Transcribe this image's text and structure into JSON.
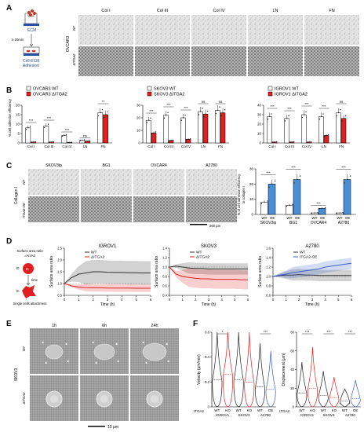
{
  "panels": {
    "A": {
      "label": "A",
      "schematic": {
        "ecm": "ECM",
        "time": "t=20min",
        "adhesion_line1": "Cell-ECM",
        "adhesion_line2": "Adhesion"
      },
      "columns": [
        "Col I",
        "Col III",
        "Col IV",
        "LN",
        "FN"
      ],
      "group": "OVCAR3",
      "rows": [
        "WT",
        "ΔITGA2"
      ]
    },
    "B": {
      "label": "B",
      "ylabel": "%  cell adhesion efficiency",
      "charts": [
        {
          "legend": [
            "OVCAR3 WT",
            "OVCAR3 ΔITGA2"
          ],
          "sig": [
            "***",
            "***",
            "***",
            "ns",
            "**"
          ]
        },
        {
          "legend": [
            "SKOV3 WT",
            "SKOV3 ΔITGA2"
          ],
          "sig": [
            "***",
            "***",
            "***",
            "ns",
            "ns"
          ]
        },
        {
          "legend": [
            "IGROV1 WT",
            "IGROV1 ΔITGA2"
          ],
          "sig": [
            "***",
            "***",
            "***",
            "***",
            "ns"
          ]
        }
      ]
    },
    "C": {
      "label": "C",
      "columns": [
        "SKOV3ip",
        "BG1",
        "OVCAR4",
        "A2780"
      ],
      "side": "Collagen  I",
      "rows": [
        "WT",
        "ITGA2-OE"
      ],
      "scale": "200 μm",
      "ylabel_line1": "% of cell adhesion efficiency",
      "ylabel_line2": "to collagen I",
      "sig": [
        "***",
        "***",
        "***",
        "***"
      ],
      "wt_oe": [
        "WT",
        "OE"
      ]
    },
    "D": {
      "label": "D",
      "schematic": {
        "title": "Surface area ratio",
        "formula": "=An/A0",
        "t0": "t0",
        "tn": "tn",
        "time": "time",
        "caption": "Single cells attachment"
      },
      "xlabel": "Time (h)",
      "ylabel": "Surface area ratio"
    },
    "E": {
      "label": "E",
      "columns": [
        "1h",
        "6h",
        "24h"
      ],
      "group": "SKOV3",
      "rows": [
        "WT",
        "ΔITGA2"
      ],
      "scale": "10 μm"
    },
    "F": {
      "label": "F",
      "row_label": "ITGA2",
      "lines": [
        "IGROV1",
        "SKOV3",
        "A2780"
      ],
      "plots": [
        {
          "ylabel": "Velocity (μm/min)",
          "sig": [
            "*",
            "***"
          ]
        },
        {
          "ylabel": "Displacement (μm)",
          "sig": [
            "***",
            "***",
            "***"
          ]
        }
      ]
    }
  },
  "chart_data": [
    {
      "type": "bar",
      "title": "",
      "categories": [
        "Col I",
        "Col III",
        "Col IV",
        "LN",
        "FN"
      ],
      "series": [
        {
          "name": "OVCAR3 WT",
          "values": [
            8,
            9,
            4,
            1.5,
            16
          ]
        },
        {
          "name": "OVCAR3 ΔITGA2",
          "values": [
            0.5,
            0.5,
            0.3,
            1,
            15
          ]
        }
      ],
      "ylim": [
        0,
        20
      ],
      "yticks": [
        0,
        5,
        10,
        15,
        20
      ],
      "colors": {
        "wt": "#ffffff",
        "ko": "#e02020"
      }
    },
    {
      "type": "bar",
      "title": "",
      "categories": [
        "Col I",
        "Col III",
        "Col IV",
        "LN",
        "FN"
      ],
      "series": [
        {
          "name": "SKOV3 WT",
          "values": [
            18,
            22,
            20,
            25,
            26
          ]
        },
        {
          "name": "SKOV3 ΔITGA2",
          "values": [
            8,
            2,
            3,
            23,
            24
          ]
        }
      ],
      "ylim": [
        0,
        30
      ],
      "yticks": [
        0,
        10,
        20,
        30
      ],
      "colors": {
        "wt": "#ffffff",
        "ko": "#e02020"
      }
    },
    {
      "type": "bar",
      "title": "",
      "categories": [
        "Col I",
        "Col III",
        "Col IV",
        "LN",
        "FN"
      ],
      "series": [
        {
          "name": "IGROV1 WT",
          "values": [
            28,
            26,
            30,
            28,
            32
          ]
        },
        {
          "name": "IGROV1 ΔITGA2",
          "values": [
            1,
            1,
            1,
            8,
            26
          ]
        }
      ],
      "ylim": [
        0,
        40
      ],
      "yticks": [
        0,
        10,
        20,
        30,
        40
      ],
      "colors": {
        "wt": "#ffffff",
        "ko": "#e02020"
      }
    },
    {
      "type": "bar",
      "title": "",
      "categories": [
        "SKOV3ip",
        "BG1",
        "OVCAR4",
        "A2780"
      ],
      "series": [
        {
          "name": "WT",
          "values": [
            8,
            6,
            1,
            1
          ]
        },
        {
          "name": "OE",
          "values": [
            20,
            23,
            4,
            23
          ]
        }
      ],
      "ylim": [
        0,
        30
      ],
      "yticks": [
        0,
        10,
        20,
        30
      ],
      "colors": {
        "wt": "#ffffff",
        "ko": "#4a8fd6"
      }
    },
    {
      "type": "line",
      "title": "IGROV1",
      "xlabel": "Time (h)",
      "ylabel": "Surface area ratio",
      "x": [
        0,
        0.5,
        1,
        1.5,
        2,
        2.5,
        3,
        3.5,
        4,
        4.5,
        5,
        5.5,
        6
      ],
      "series": [
        {
          "name": "WT",
          "values": [
            1.0,
            1.25,
            1.4,
            1.45,
            1.5,
            1.5,
            1.48,
            1.47,
            1.47,
            1.46,
            1.46,
            1.45,
            1.45
          ]
        },
        {
          "name": "ΔITGA2",
          "values": [
            1.0,
            0.9,
            0.85,
            0.83,
            0.82,
            0.82,
            0.81,
            0.81,
            0.81,
            0.81,
            0.8,
            0.8,
            0.8
          ]
        }
      ],
      "xlim": [
        0,
        6
      ],
      "ylim": [
        0.5,
        2.5
      ],
      "yticks": [
        0.5,
        1.0,
        1.5,
        2.0,
        2.5
      ]
    },
    {
      "type": "line",
      "title": "SKOV3",
      "xlabel": "Time (h)",
      "ylabel": "Surface area ratio",
      "x": [
        0,
        0.5,
        1,
        1.5,
        2,
        2.5,
        3,
        3.5,
        4,
        4.5,
        5,
        5.5,
        6
      ],
      "series": [
        {
          "name": "WT",
          "values": [
            1.0,
            1.02,
            1.0,
            0.98,
            0.97,
            0.97,
            0.96,
            0.96,
            0.96,
            0.96,
            0.96,
            0.96,
            0.96
          ]
        },
        {
          "name": "ΔITGA2",
          "values": [
            1.0,
            0.85,
            0.8,
            0.78,
            0.76,
            0.75,
            0.75,
            0.74,
            0.74,
            0.74,
            0.74,
            0.73,
            0.73
          ]
        }
      ],
      "xlim": [
        0,
        6
      ],
      "ylim": [
        0.4,
        1.4
      ],
      "yticks": [
        0.4,
        0.6,
        0.8,
        1.0,
        1.2,
        1.4
      ]
    },
    {
      "type": "line",
      "title": "A2780",
      "xlabel": "Time (h)",
      "ylabel": "Surface area ratio",
      "x": [
        0,
        0.5,
        1,
        1.5,
        2,
        2.5,
        3,
        3.5,
        4,
        4.5,
        5,
        5.5,
        6
      ],
      "series": [
        {
          "name": "WT",
          "values": [
            1.0,
            1.02,
            1.03,
            1.03,
            1.04,
            1.03,
            1.03,
            1.02,
            1.02,
            1.02,
            1.02,
            1.02,
            1.02
          ]
        },
        {
          "name": "ITGA2-OE",
          "values": [
            1.0,
            1.03,
            1.05,
            1.08,
            1.1,
            1.12,
            1.14,
            1.16,
            1.2,
            1.22,
            1.24,
            1.26,
            1.28
          ]
        }
      ],
      "xlim": [
        0,
        6
      ],
      "ylim": [
        0.6,
        1.6
      ],
      "yticks": [
        0.6,
        0.8,
        1.0,
        1.2,
        1.4,
        1.6
      ]
    },
    {
      "type": "violin",
      "ylabel": "Velocity (μm/min)",
      "categories": [
        "WT",
        "KO",
        "WT",
        "KO",
        "WT",
        "OE"
      ],
      "groups": [
        "IGROV1",
        "IGROV1",
        "SKOV3",
        "SKOV3",
        "A2780",
        "A2780"
      ],
      "medians": [
        0.22,
        0.26,
        0.22,
        0.2,
        0.16,
        0.14
      ],
      "ylim": [
        0,
        0.6
      ],
      "yticks": [
        0,
        0.2,
        0.4,
        0.6
      ]
    },
    {
      "type": "violin",
      "ylabel": "Displacement (μm)",
      "categories": [
        "WT",
        "KO",
        "WT",
        "KO",
        "WT",
        "OE"
      ],
      "groups": [
        "IGROV1",
        "IGROV1",
        "SKOV3",
        "SKOV3",
        "A2780",
        "A2780"
      ],
      "medians": [
        15,
        20,
        12,
        10,
        6,
        9
      ],
      "ylim": [
        0,
        80
      ],
      "yticks": [
        0,
        20,
        40,
        60,
        80
      ]
    }
  ]
}
